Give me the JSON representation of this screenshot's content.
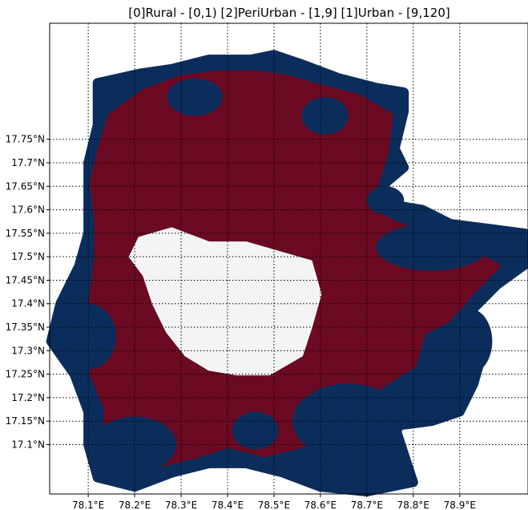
{
  "title": "[0]Rural - [0,1) [2]PeriUrban - [1,9] [1]Urban - [9,120]",
  "colors": {
    "rural": "#0b2d5c",
    "periurban": "#6b0a22",
    "urban": "#f4f4f4",
    "grid": "#000000",
    "background": "#ffffff"
  },
  "map": {
    "x_ticks": [
      {
        "value": 78.1,
        "label": "78.1°E"
      },
      {
        "value": 78.2,
        "label": "78.2°E"
      },
      {
        "value": 78.3,
        "label": "78.3°E"
      },
      {
        "value": 78.4,
        "label": "78.4°E"
      },
      {
        "value": 78.5,
        "label": "78.5°E"
      },
      {
        "value": 78.6,
        "label": "78.6°E"
      },
      {
        "value": 78.7,
        "label": "78.7°E"
      },
      {
        "value": 78.8,
        "label": "78.8°E"
      },
      {
        "value": 78.9,
        "label": "78.9°E"
      }
    ],
    "y_ticks": [
      {
        "value": 17.75,
        "label": "17.75°N"
      },
      {
        "value": 17.7,
        "label": "17.7°N"
      },
      {
        "value": 17.65,
        "label": "17.65°N"
      },
      {
        "value": 17.6,
        "label": "17.6°N"
      },
      {
        "value": 17.55,
        "label": "17.55°N"
      },
      {
        "value": 17.5,
        "label": "17.5°N"
      },
      {
        "value": 17.45,
        "label": "17.45°N"
      },
      {
        "value": 17.4,
        "label": "17.4°N"
      },
      {
        "value": 17.35,
        "label": "17.35°N"
      },
      {
        "value": 17.3,
        "label": "17.3°N"
      },
      {
        "value": 17.25,
        "label": "17.25°N"
      },
      {
        "value": 17.2,
        "label": "17.2°N"
      },
      {
        "value": 17.15,
        "label": "17.15°N"
      },
      {
        "value": 17.1,
        "label": "17.1°N"
      }
    ],
    "lon_range": [
      78.017,
      79.047
    ],
    "lat_range": [
      16.995,
      17.997
    ],
    "grid": "dotted",
    "classes": [
      {
        "id": 0,
        "name": "Rural",
        "range": "[0,1)"
      },
      {
        "id": 2,
        "name": "PeriUrban",
        "range": "[1,9]"
      },
      {
        "id": 1,
        "name": "Urban",
        "range": "[9,120]"
      }
    ],
    "regions": {
      "rural_extent": [
        [
          78.12,
          17.87
        ],
        [
          78.21,
          17.89
        ],
        [
          78.28,
          17.9
        ],
        [
          78.36,
          17.92
        ],
        [
          78.45,
          17.92
        ],
        [
          78.5,
          17.93
        ],
        [
          78.56,
          17.91
        ],
        [
          78.64,
          17.88
        ],
        [
          78.72,
          17.86
        ],
        [
          78.78,
          17.85
        ],
        [
          78.78,
          17.81
        ],
        [
          78.76,
          17.73
        ],
        [
          78.78,
          17.69
        ],
        [
          78.72,
          17.64
        ],
        [
          78.76,
          17.61
        ],
        [
          78.82,
          17.6
        ],
        [
          78.88,
          17.57
        ],
        [
          78.96,
          17.56
        ],
        [
          79.04,
          17.55
        ],
        [
          79.05,
          17.49
        ],
        [
          78.98,
          17.44
        ],
        [
          78.94,
          17.4
        ],
        [
          78.9,
          17.36
        ],
        [
          78.95,
          17.3
        ],
        [
          78.93,
          17.23
        ],
        [
          78.9,
          17.17
        ],
        [
          78.84,
          17.15
        ],
        [
          78.76,
          17.14
        ],
        [
          78.78,
          17.08
        ],
        [
          78.8,
          17.02
        ],
        [
          78.7,
          17.0
        ],
        [
          78.6,
          17.01
        ],
        [
          78.52,
          17.04
        ],
        [
          78.44,
          17.06
        ],
        [
          78.36,
          17.06
        ],
        [
          78.28,
          17.04
        ],
        [
          78.2,
          17.01
        ],
        [
          78.12,
          17.03
        ],
        [
          78.1,
          17.1
        ],
        [
          78.1,
          17.17
        ],
        [
          78.07,
          17.25
        ],
        [
          78.02,
          17.32
        ],
        [
          78.04,
          17.4
        ],
        [
          78.08,
          17.48
        ],
        [
          78.1,
          17.55
        ],
        [
          78.1,
          17.63
        ],
        [
          78.1,
          17.7
        ],
        [
          78.12,
          17.78
        ]
      ],
      "periurban_extent": [
        [
          78.15,
          17.8
        ],
        [
          78.22,
          17.85
        ],
        [
          78.3,
          17.88
        ],
        [
          78.38,
          17.89
        ],
        [
          78.46,
          17.89
        ],
        [
          78.53,
          17.88
        ],
        [
          78.6,
          17.86
        ],
        [
          78.68,
          17.84
        ],
        [
          78.75,
          17.8
        ],
        [
          78.74,
          17.72
        ],
        [
          78.72,
          17.66
        ],
        [
          78.7,
          17.6
        ],
        [
          78.76,
          17.57
        ],
        [
          78.84,
          17.54
        ],
        [
          78.92,
          17.51
        ],
        [
          78.98,
          17.48
        ],
        [
          78.92,
          17.42
        ],
        [
          78.88,
          17.37
        ],
        [
          78.82,
          17.34
        ],
        [
          78.8,
          17.27
        ],
        [
          78.72,
          17.22
        ],
        [
          78.66,
          17.2
        ],
        [
          78.62,
          17.14
        ],
        [
          78.56,
          17.1
        ],
        [
          78.48,
          17.08
        ],
        [
          78.4,
          17.1
        ],
        [
          78.34,
          17.08
        ],
        [
          78.26,
          17.06
        ],
        [
          78.18,
          17.06
        ],
        [
          78.14,
          17.1
        ],
        [
          78.14,
          17.18
        ],
        [
          78.11,
          17.25
        ],
        [
          78.1,
          17.33
        ],
        [
          78.11,
          17.42
        ],
        [
          78.12,
          17.5
        ],
        [
          78.12,
          17.58
        ],
        [
          78.11,
          17.66
        ],
        [
          78.13,
          17.74
        ]
      ],
      "urban_core": [
        [
          78.21,
          17.54
        ],
        [
          78.28,
          17.56
        ],
        [
          78.36,
          17.53
        ],
        [
          78.44,
          17.53
        ],
        [
          78.51,
          17.51
        ],
        [
          78.58,
          17.49
        ],
        [
          78.6,
          17.42
        ],
        [
          78.58,
          17.35
        ],
        [
          78.56,
          17.29
        ],
        [
          78.49,
          17.25
        ],
        [
          78.42,
          17.25
        ],
        [
          78.36,
          17.26
        ],
        [
          78.31,
          17.29
        ],
        [
          78.27,
          17.34
        ],
        [
          78.24,
          17.4
        ],
        [
          78.22,
          17.46
        ],
        [
          78.19,
          17.5
        ]
      ],
      "rural_patches": [
        {
          "center": [
            78.66,
            17.15
          ],
          "radius": [
            0.12,
            0.08
          ]
        },
        {
          "center": [
            78.2,
            17.1
          ],
          "radius": [
            0.09,
            0.06
          ]
        },
        {
          "center": [
            78.1,
            17.33
          ],
          "radius": [
            0.06,
            0.07
          ]
        },
        {
          "center": [
            78.84,
            17.52
          ],
          "radius": [
            0.12,
            0.05
          ]
        },
        {
          "center": [
            78.92,
            17.32
          ],
          "radius": [
            0.05,
            0.07
          ]
        },
        {
          "center": [
            78.33,
            17.84
          ],
          "radius": [
            0.06,
            0.04
          ]
        },
        {
          "center": [
            78.61,
            17.8
          ],
          "radius": [
            0.05,
            0.04
          ]
        },
        {
          "center": [
            78.46,
            17.13
          ],
          "radius": [
            0.05,
            0.04
          ]
        },
        {
          "center": [
            78.74,
            17.62
          ],
          "radius": [
            0.04,
            0.03
          ]
        }
      ]
    }
  }
}
